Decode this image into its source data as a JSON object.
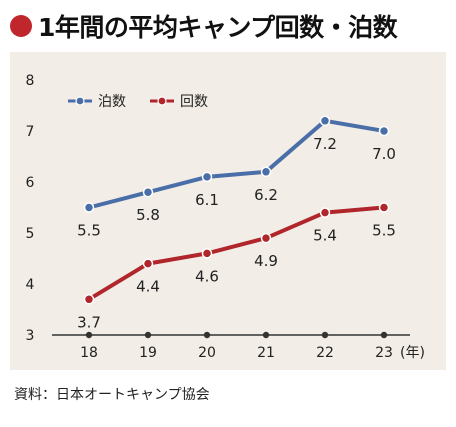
{
  "header": {
    "title": "1年間の平均キャンプ回数・泊数",
    "title_bullet_color": "#c0272d"
  },
  "source_note": "資料：日本オートキャンプ協会",
  "chart_data": {
    "type": "line",
    "title": "1年間の平均キャンプ回数・泊数",
    "categories": [
      "18",
      "19",
      "20",
      "21",
      "22",
      "23"
    ],
    "x_unit_label": "(年)",
    "ylim": [
      3,
      8
    ],
    "yticks": [
      3,
      4,
      5,
      6,
      7,
      8
    ],
    "grid": false,
    "legend_position": "top-left",
    "background_color": "#f2eee7",
    "series": [
      {
        "name": "泊数",
        "color": "#4a6ea8",
        "values": [
          5.5,
          5.8,
          6.1,
          6.2,
          7.2,
          7.0
        ],
        "labels": [
          "5.5",
          "5.8",
          "6.1",
          "6.2",
          "7.2",
          "7.0"
        ]
      },
      {
        "name": "回数",
        "color": "#b0262b",
        "values": [
          3.7,
          4.4,
          4.6,
          4.9,
          5.4,
          5.5
        ],
        "labels": [
          "3.7",
          "4.4",
          "4.6",
          "4.9",
          "5.4",
          "5.5"
        ]
      }
    ]
  }
}
